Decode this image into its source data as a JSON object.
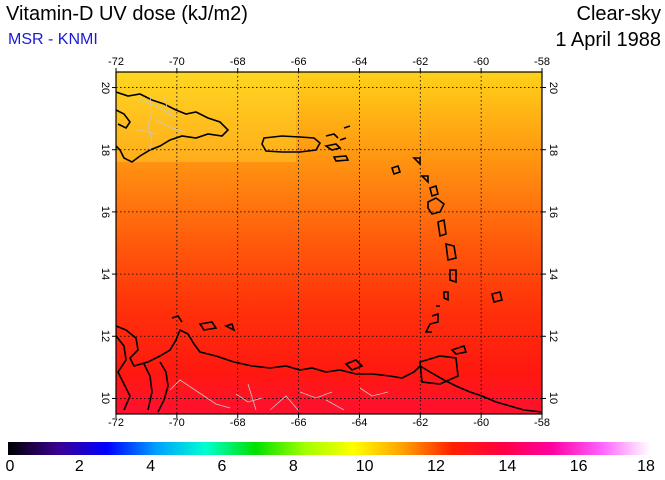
{
  "header": {
    "title": "Vitamin-D UV dose (kJ/m2)",
    "subtitle": "MSR - KNMI",
    "condition": "Clear-sky",
    "date": "1 April 1988"
  },
  "map": {
    "lon_ticks": [
      "-72",
      "-70",
      "-68",
      "-66",
      "-64",
      "-62",
      "-60",
      "-58"
    ],
    "lat_ticks": [
      "20",
      "18",
      "16",
      "14",
      "12",
      "10"
    ],
    "lon_range": [
      -72,
      -58
    ],
    "lat_range": [
      9.5,
      20.5
    ]
  },
  "colorbar": {
    "labels": [
      "0",
      "2",
      "4",
      "6",
      "8",
      "10",
      "12",
      "14",
      "16",
      "18"
    ],
    "colors": [
      "#000000",
      "#3a0090",
      "#0000ff",
      "#00a0ff",
      "#00ffd0",
      "#00e000",
      "#a0ff00",
      "#ffff00",
      "#ffa000",
      "#ff2000",
      "#ff0040",
      "#ff00a0",
      "#ff60ff",
      "#ffffff"
    ]
  }
}
